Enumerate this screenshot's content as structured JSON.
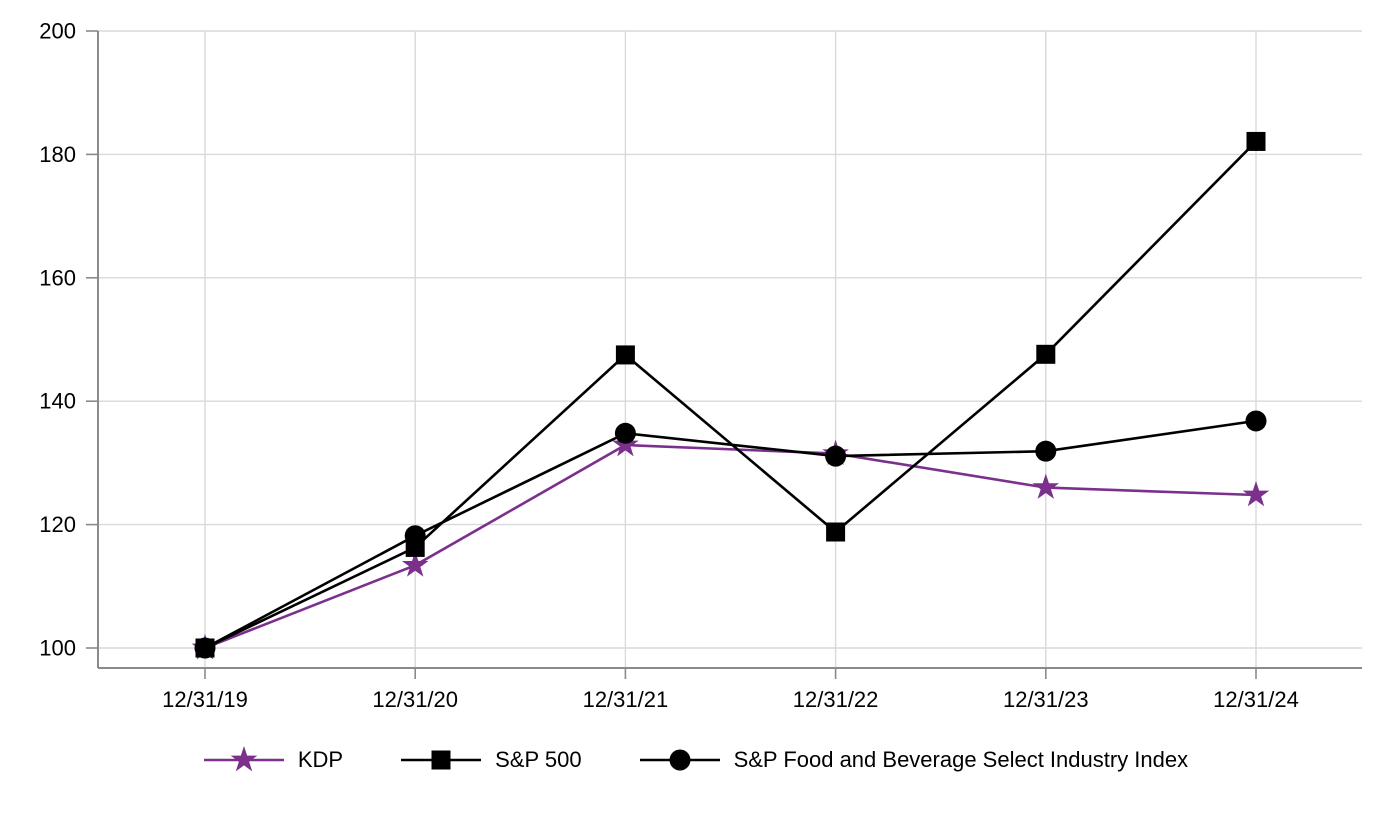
{
  "chart_data": {
    "type": "line",
    "title": "",
    "xlabel": "",
    "ylabel": "",
    "categories": [
      "12/31/19",
      "12/31/20",
      "12/31/21",
      "12/31/22",
      "12/31/23",
      "12/31/24"
    ],
    "y_ticks": [
      100,
      120,
      140,
      160,
      180,
      200
    ],
    "ylim": [
      96.8,
      200
    ],
    "grid": "both",
    "legend_position": "bottom",
    "series": [
      {
        "name": "KDP",
        "marker": "star",
        "color": "#7B318C",
        "values": [
          100,
          113.4,
          132.9,
          131.5,
          126.0,
          124.8
        ]
      },
      {
        "name": "S&P 500",
        "marker": "square",
        "color": "#000000",
        "values": [
          100,
          116.3,
          147.5,
          118.8,
          147.6,
          182.1
        ]
      },
      {
        "name": "S&P Food and Beverage Select Industry Index",
        "marker": "circle",
        "color": "#000000",
        "values": [
          100,
          118.2,
          134.8,
          131.1,
          131.9,
          136.8
        ]
      }
    ]
  },
  "colors": {
    "grid": "#D9D9D9",
    "axis": "#8A8A8A",
    "tick_label": "#000000",
    "kdp_purple": "#7B318C",
    "black": "#000000"
  }
}
